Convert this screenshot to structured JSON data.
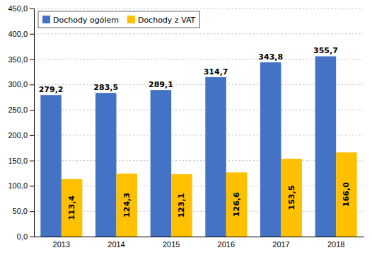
{
  "chart_data": {
    "type": "bar",
    "categories": [
      "2013",
      "2014",
      "2015",
      "2016",
      "2017",
      "2018"
    ],
    "series": [
      {
        "name": "Dochody ogólem",
        "color": "#4472C4",
        "values": [
          279.2,
          283.5,
          289.1,
          314.7,
          343.8,
          355.7
        ],
        "value_labels": [
          "279,2",
          "283,5",
          "289,1",
          "314,7",
          "343,8",
          "355,7"
        ]
      },
      {
        "name": "Dochody z VAT",
        "color": "#FFC000",
        "values": [
          113.4,
          124.3,
          123.1,
          126.6,
          153.5,
          166.0
        ],
        "value_labels": [
          "113,4",
          "124,3",
          "123,1",
          "126,6",
          "153,5",
          "166,0"
        ]
      }
    ],
    "ylim": [
      0,
      450
    ],
    "yticks": [
      {
        "value": 0.0,
        "label": "0,0"
      },
      {
        "value": 50.0,
        "label": "50,0"
      },
      {
        "value": 100.0,
        "label": "100,0"
      },
      {
        "value": 150.0,
        "label": "150,0"
      },
      {
        "value": 200.0,
        "label": "200,0"
      },
      {
        "value": 250.0,
        "label": "250,0"
      },
      {
        "value": 300.0,
        "label": "300,0"
      },
      {
        "value": 350.0,
        "label": "350,0"
      },
      {
        "value": 400.0,
        "label": "400,0"
      },
      {
        "value": 450.0,
        "label": "450,0"
      }
    ],
    "grid": true,
    "legend": "upper left",
    "data_labels": true
  }
}
